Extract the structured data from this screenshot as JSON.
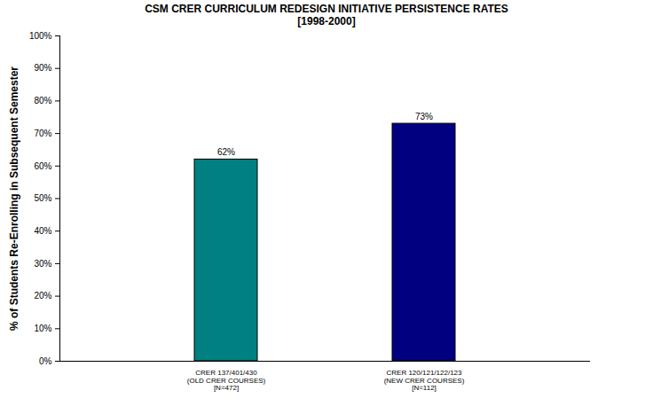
{
  "chart_data": {
    "type": "bar",
    "title": "CSM CRER CURRICULUM REDESIGN INITIATIVE PERSISTENCE RATES",
    "subtitle": "[1998-2000]",
    "y_label": "% of Students Re-Enrolling in Subsequent Semester",
    "categories": [
      "CRER 137/401/430\n(OLD CRER COURSES)\n[N=472]",
      "CRER 120/121/122/123\n(NEW CRER COURSES)\n[N=112]"
    ],
    "values": [
      62,
      73
    ],
    "value_labels": [
      "62%",
      "73%"
    ],
    "colors": [
      "#008080",
      "#000080"
    ],
    "ylim": [
      0,
      100
    ],
    "yticks": [
      {
        "value": 0,
        "label": "0%"
      },
      {
        "value": 10,
        "label": "10%"
      },
      {
        "value": 20,
        "label": "20%"
      },
      {
        "value": 30,
        "label": "30%"
      },
      {
        "value": 40,
        "label": "40%"
      },
      {
        "value": 50,
        "label": "50%"
      },
      {
        "value": 60,
        "label": "60%"
      },
      {
        "value": 70,
        "label": "70%"
      },
      {
        "value": 80,
        "label": "80%"
      },
      {
        "value": 90,
        "label": "90%"
      },
      {
        "value": 100,
        "label": "100%"
      }
    ],
    "grid": false,
    "data_labels": true
  }
}
